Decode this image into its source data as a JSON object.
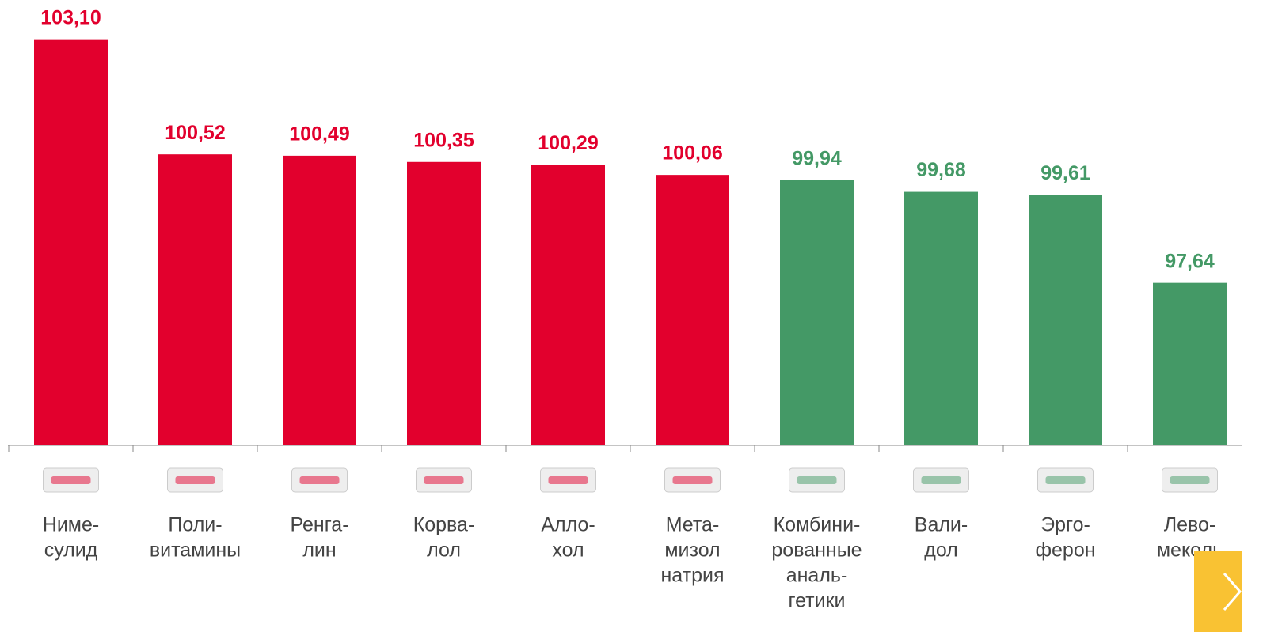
{
  "chart_data": {
    "type": "bar",
    "categories": [
      [
        "Ниме-",
        "сулид"
      ],
      [
        "Поли-",
        "витамины"
      ],
      [
        "Ренга-",
        "лин"
      ],
      [
        "Корва-",
        "лол"
      ],
      [
        "Алло-",
        "хол"
      ],
      [
        "Мета-",
        "мизол",
        "натрия"
      ],
      [
        "Комбини-",
        "рованные",
        "аналь-",
        "гетики"
      ],
      [
        "Вали-",
        "дол"
      ],
      [
        "Эрго-",
        "ферон"
      ],
      [
        "Лево-",
        "меколь"
      ]
    ],
    "values": [
      103.1,
      100.52,
      100.49,
      100.35,
      100.29,
      100.06,
      99.94,
      99.68,
      99.61,
      97.64
    ],
    "value_labels": [
      "103,10",
      "100,52",
      "100,49",
      "100,35",
      "100,29",
      "100,06",
      "99,94",
      "99,68",
      "99,61",
      "97,64"
    ],
    "colors": [
      "#e2002d",
      "#e2002d",
      "#e2002d",
      "#e2002d",
      "#e2002d",
      "#e2002d",
      "#449966",
      "#449966",
      "#449966",
      "#449966"
    ],
    "ylim": [
      94,
      103.2
    ]
  }
}
